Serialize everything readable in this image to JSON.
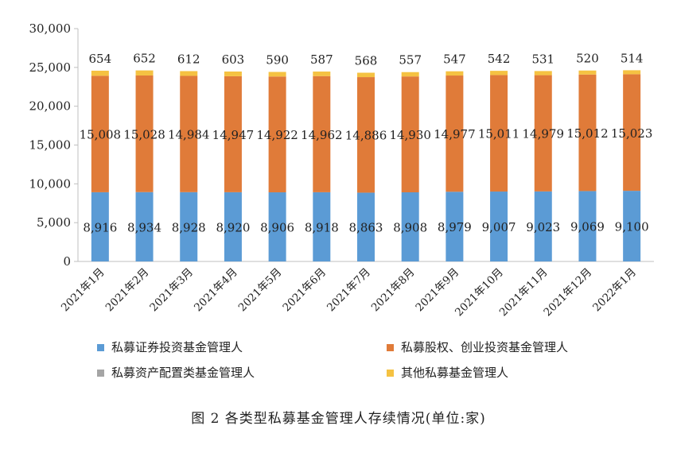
{
  "caption": "图 2 各类型私募基金管理人存续情况(单位:家)",
  "chart_data": {
    "type": "bar",
    "stacked": true,
    "categories": [
      "2021年1月",
      "2021年2月",
      "2021年3月",
      "2021年4月",
      "2021年5月",
      "2021年6月",
      "2021年7月",
      "2021年8月",
      "2021年9月",
      "2021年10月",
      "2021年11月",
      "2021年12月",
      "2022年1月"
    ],
    "ylim": [
      0,
      30000
    ],
    "yticks": [
      0,
      5000,
      10000,
      15000,
      20000,
      25000,
      30000
    ],
    "ytick_labels": [
      "0",
      "5,000",
      "10,000",
      "15,000",
      "20,000",
      "25,000",
      "30,000"
    ],
    "grid": false,
    "legend_position": "bottom",
    "series": [
      {
        "name": "私募证券投资基金管理人",
        "color": "#5b9bd5",
        "values": [
          8916,
          8934,
          8928,
          8920,
          8906,
          8918,
          8863,
          8908,
          8979,
          9007,
          9023,
          9069,
          9100
        ],
        "labels": [
          "8,916",
          "8,934",
          "8,928",
          "8,920",
          "8,906",
          "8,918",
          "8,863",
          "8,908",
          "8,979",
          "9,007",
          "9,023",
          "9,069",
          "9,100"
        ]
      },
      {
        "name": "私募股权、创业投资基金管理人",
        "color": "#e07b39",
        "values": [
          15008,
          15028,
          14984,
          14947,
          14922,
          14962,
          14886,
          14930,
          14977,
          15011,
          14979,
          15012,
          15023
        ],
        "labels": [
          "15,008",
          "15,028",
          "14,984",
          "14,947",
          "14,922",
          "14,962",
          "14,886",
          "14,930",
          "14,977",
          "15,011",
          "14,979",
          "15,012",
          "15,023"
        ]
      },
      {
        "name": "私募资产配置类基金管理人",
        "color": "#a5a5a5",
        "values": [
          null,
          null,
          null,
          null,
          null,
          null,
          null,
          null,
          null,
          null,
          null,
          null,
          null
        ],
        "labels": []
      },
      {
        "name": "其他私募基金管理人",
        "color": "#f5c242",
        "values": [
          654,
          652,
          612,
          603,
          590,
          587,
          568,
          557,
          547,
          542,
          531,
          520,
          514
        ],
        "labels": [
          "654",
          "652",
          "612",
          "603",
          "590",
          "587",
          "568",
          "557",
          "547",
          "542",
          "531",
          "520",
          "514"
        ]
      }
    ]
  }
}
